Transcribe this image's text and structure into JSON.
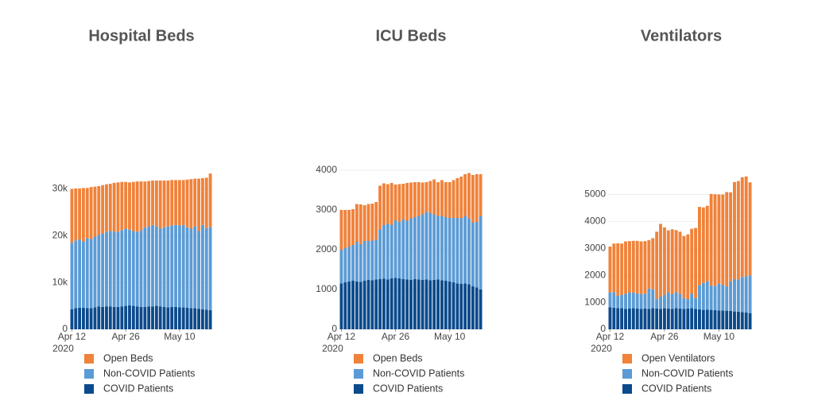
{
  "chart_data": [
    {
      "type": "bar",
      "stacked": true,
      "title": "Hospital Beds",
      "categories": [
        "2020-04-12",
        "2020-04-13",
        "2020-04-14",
        "2020-04-15",
        "2020-04-16",
        "2020-04-17",
        "2020-04-18",
        "2020-04-19",
        "2020-04-20",
        "2020-04-21",
        "2020-04-22",
        "2020-04-23",
        "2020-04-24",
        "2020-04-25",
        "2020-04-26",
        "2020-04-27",
        "2020-04-28",
        "2020-04-29",
        "2020-04-30",
        "2020-05-01",
        "2020-05-02",
        "2020-05-03",
        "2020-05-04",
        "2020-05-05",
        "2020-05-06",
        "2020-05-07",
        "2020-05-08",
        "2020-05-09",
        "2020-05-10",
        "2020-05-11",
        "2020-05-12",
        "2020-05-13",
        "2020-05-14",
        "2020-05-15",
        "2020-05-16",
        "2020-05-17",
        "2020-05-18"
      ],
      "series": [
        {
          "name": "COVID Patients",
          "color": "#0b4a8c",
          "values": [
            4300,
            4500,
            4600,
            4600,
            4500,
            4500,
            4700,
            4900,
            4800,
            4900,
            4900,
            4800,
            4800,
            4900,
            5000,
            5100,
            5000,
            4900,
            4800,
            4800,
            4900,
            4900,
            5000,
            4900,
            4800,
            4700,
            4800,
            4800,
            4700,
            4700,
            4600,
            4500,
            4500,
            4400,
            4300,
            4200,
            4100
          ]
        },
        {
          "name": "Non-COVID Patients",
          "color": "#5b9bd5",
          "values": [
            14200,
            14500,
            14600,
            14200,
            15000,
            14800,
            15100,
            15300,
            15700,
            15900,
            16100,
            16100,
            16000,
            16300,
            16500,
            16200,
            16000,
            15900,
            16400,
            17000,
            17100,
            17400,
            17000,
            16600,
            17000,
            17300,
            17400,
            17500,
            17500,
            17600,
            17200,
            17000,
            17500,
            16600,
            18000,
            17400,
            17800
          ]
        },
        {
          "name": "Open Beds",
          "color": "#f0823a",
          "values": [
            11500,
            11100,
            10900,
            11400,
            10700,
            11100,
            10700,
            10400,
            10300,
            10200,
            10100,
            10400,
            10600,
            10300,
            10000,
            10100,
            10500,
            10800,
            10400,
            9800,
            9700,
            9500,
            9800,
            10300,
            10000,
            9800,
            9700,
            9600,
            9700,
            9600,
            10200,
            10600,
            10200,
            11200,
            10000,
            10800,
            11400
          ]
        }
      ],
      "ylim": [
        0,
        34000
      ],
      "yticks": [
        0,
        {
          "value": 10000,
          "label": "10k"
        },
        {
          "value": 20000,
          "label": "20k"
        },
        {
          "value": 30000,
          "label": "30k"
        }
      ],
      "xticks": [
        {
          "value": "2020-04-12",
          "label": "Apr 12",
          "year": "2020"
        },
        {
          "value": "2020-04-26",
          "label": "Apr 26"
        },
        {
          "value": "2020-05-10",
          "label": "May 10"
        }
      ],
      "grid": true
    },
    {
      "type": "bar",
      "stacked": true,
      "title": "ICU Beds",
      "categories": [
        "2020-04-12",
        "2020-04-13",
        "2020-04-14",
        "2020-04-15",
        "2020-04-16",
        "2020-04-17",
        "2020-04-18",
        "2020-04-19",
        "2020-04-20",
        "2020-04-21",
        "2020-04-22",
        "2020-04-23",
        "2020-04-24",
        "2020-04-25",
        "2020-04-26",
        "2020-04-27",
        "2020-04-28",
        "2020-04-29",
        "2020-04-30",
        "2020-05-01",
        "2020-05-02",
        "2020-05-03",
        "2020-05-04",
        "2020-05-05",
        "2020-05-06",
        "2020-05-07",
        "2020-05-08",
        "2020-05-09",
        "2020-05-10",
        "2020-05-11",
        "2020-05-12",
        "2020-05-13",
        "2020-05-14",
        "2020-05-15",
        "2020-05-16",
        "2020-05-17",
        "2020-05-18"
      ],
      "series": [
        {
          "name": "COVID Patients",
          "color": "#0b4a8c",
          "values": [
            1150,
            1180,
            1200,
            1220,
            1200,
            1190,
            1220,
            1240,
            1230,
            1250,
            1260,
            1270,
            1250,
            1280,
            1290,
            1280,
            1260,
            1250,
            1240,
            1260,
            1250,
            1240,
            1250,
            1230,
            1240,
            1250,
            1230,
            1220,
            1200,
            1180,
            1150,
            1140,
            1150,
            1130,
            1080,
            1050,
            1000
          ]
        },
        {
          "name": "Non-COVID Patients",
          "color": "#5b9bd5",
          "values": [
            850,
            860,
            880,
            900,
            1000,
            950,
            1000,
            980,
            1000,
            1000,
            1250,
            1350,
            1400,
            1350,
            1450,
            1420,
            1500,
            1480,
            1550,
            1560,
            1600,
            1650,
            1700,
            1700,
            1650,
            1600,
            1620,
            1600,
            1600,
            1620,
            1650,
            1650,
            1700,
            1650,
            1600,
            1650,
            1850
          ]
        },
        {
          "name": "Open Beds",
          "color": "#f0823a",
          "values": [
            1000,
            960,
            920,
            900,
            950,
            1000,
            900,
            930,
            930,
            950,
            1100,
            1050,
            1000,
            1050,
            900,
            950,
            900,
            950,
            900,
            880,
            850,
            800,
            750,
            800,
            880,
            850,
            900,
            880,
            900,
            950,
            1000,
            1050,
            1050,
            1150,
            1200,
            1200,
            1050
          ]
        }
      ],
      "ylim": [
        0,
        4000
      ],
      "yticks": [
        0,
        1000,
        2000,
        3000,
        4000
      ],
      "xticks": [
        {
          "value": "2020-04-12",
          "label": "Apr 12",
          "year": "2020"
        },
        {
          "value": "2020-04-26",
          "label": "Apr 26"
        },
        {
          "value": "2020-05-10",
          "label": "May 10"
        }
      ],
      "grid": true
    },
    {
      "type": "bar",
      "stacked": true,
      "title": "Ventilators",
      "categories": [
        "2020-04-12",
        "2020-04-13",
        "2020-04-14",
        "2020-04-15",
        "2020-04-16",
        "2020-04-17",
        "2020-04-18",
        "2020-04-19",
        "2020-04-20",
        "2020-04-21",
        "2020-04-22",
        "2020-04-23",
        "2020-04-24",
        "2020-04-25",
        "2020-04-26",
        "2020-04-27",
        "2020-04-28",
        "2020-04-29",
        "2020-04-30",
        "2020-05-01",
        "2020-05-02",
        "2020-05-03",
        "2020-05-04",
        "2020-05-05",
        "2020-05-06",
        "2020-05-07",
        "2020-05-08",
        "2020-05-09",
        "2020-05-10",
        "2020-05-11",
        "2020-05-12",
        "2020-05-13",
        "2020-05-14",
        "2020-05-15",
        "2020-05-16",
        "2020-05-17",
        "2020-05-18"
      ],
      "series": [
        {
          "name": "COVID Patients",
          "color": "#0b4a8c",
          "values": [
            820,
            800,
            790,
            780,
            760,
            770,
            780,
            770,
            760,
            770,
            760,
            780,
            770,
            760,
            780,
            770,
            760,
            780,
            770,
            760,
            770,
            780,
            760,
            740,
            720,
            730,
            720,
            710,
            700,
            700,
            690,
            680,
            660,
            650,
            640,
            620,
            600
          ]
        },
        {
          "name": "Non-COVID Patients",
          "color": "#5b9bd5",
          "values": [
            550,
            580,
            450,
            500,
            550,
            600,
            580,
            560,
            550,
            550,
            750,
            700,
            350,
            450,
            500,
            600,
            550,
            600,
            550,
            400,
            350,
            550,
            400,
            900,
            1000,
            1050,
            900,
            900,
            1000,
            950,
            900,
            1100,
            1200,
            1200,
            1300,
            1350,
            1400
          ]
        },
        {
          "name": "Open Ventilators",
          "color": "#f0823a",
          "values": [
            1700,
            1800,
            1950,
            1900,
            1950,
            1900,
            1920,
            1950,
            1950,
            1950,
            1800,
            1900,
            2500,
            2700,
            2500,
            2300,
            2400,
            2300,
            2300,
            2300,
            2400,
            2400,
            2600,
            2900,
            2800,
            2800,
            3400,
            3400,
            3300,
            3350,
            3500,
            3300,
            3600,
            3650,
            3700,
            3700,
            3450
          ]
        }
      ],
      "ylim": [
        0,
        5900
      ],
      "yticks": [
        0,
        1000,
        2000,
        3000,
        4000,
        5000
      ],
      "xticks": [
        {
          "value": "2020-04-12",
          "label": "Apr 12",
          "year": "2020"
        },
        {
          "value": "2020-04-26",
          "label": "Apr 26"
        },
        {
          "value": "2020-05-10",
          "label": "May 10"
        }
      ],
      "grid": true
    }
  ]
}
